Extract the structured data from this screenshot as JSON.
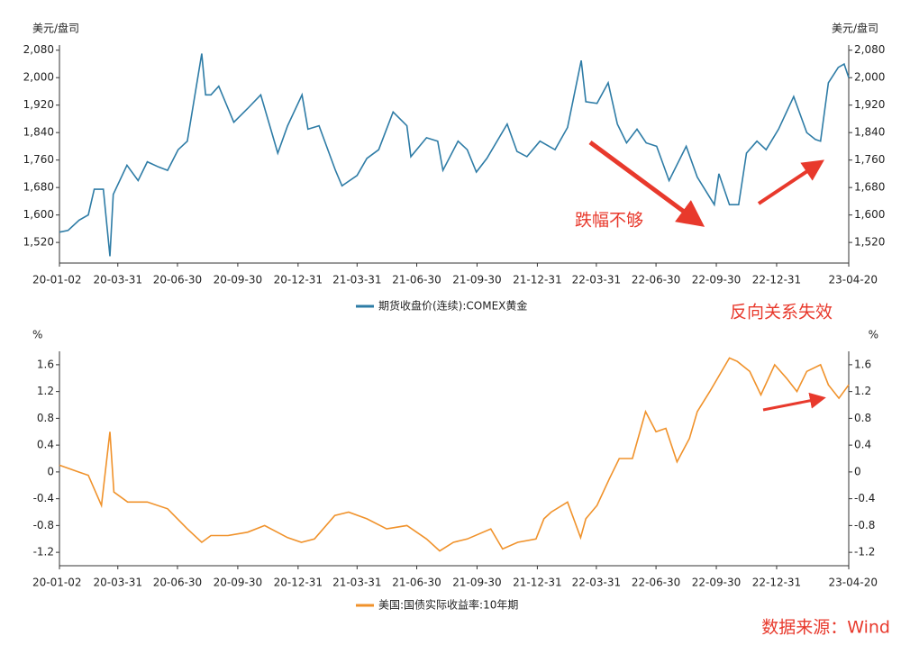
{
  "chart_data": [
    {
      "type": "line",
      "y_label": "美元/盘司",
      "y2_label": "美元/盘司",
      "annotations": [
        "跌幅不够",
        "反向关系失效"
      ],
      "xlim": [
        "20-01-02",
        "23-04-20"
      ],
      "xticks": [
        "20-01-02",
        "20-03-31",
        "20-06-30",
        "20-09-30",
        "20-12-31",
        "21-03-31",
        "21-06-30",
        "21-09-30",
        "21-12-31",
        "22-03-31",
        "22-06-30",
        "22-09-30",
        "22-12-31",
        "23-04-20"
      ],
      "ylim": [
        1460,
        2095
      ],
      "yticks": [
        {
          "value": 1520,
          "label": "1,520"
        },
        {
          "value": 1600,
          "label": "1,600"
        },
        {
          "value": 1680,
          "label": "1,680"
        },
        {
          "value": 1760,
          "label": "1,760"
        },
        {
          "value": 1840,
          "label": "1,840"
        },
        {
          "value": 1920,
          "label": "1,920"
        },
        {
          "value": 2000,
          "label": "2,000"
        },
        {
          "value": 2080,
          "label": "2,080"
        }
      ],
      "x": [
        "20-01-02",
        "20-01-15",
        "20-02-01",
        "20-02-15",
        "20-02-24",
        "20-03-09",
        "20-03-19",
        "20-03-24",
        "20-04-14",
        "20-05-01",
        "20-05-15",
        "20-06-01",
        "20-06-15",
        "20-07-01",
        "20-07-15",
        "20-08-06",
        "20-08-12",
        "20-08-20",
        "20-09-01",
        "20-09-24",
        "20-10-15",
        "20-11-04",
        "20-11-30",
        "20-12-15",
        "21-01-06",
        "21-01-15",
        "21-02-01",
        "21-02-26",
        "21-03-08",
        "21-03-31",
        "21-04-15",
        "21-05-03",
        "21-05-25",
        "21-06-15",
        "21-06-21",
        "21-07-15",
        "21-08-01",
        "21-08-09",
        "21-09-01",
        "21-09-15",
        "21-09-29",
        "21-10-15",
        "21-11-15",
        "21-11-30",
        "21-12-15",
        "22-01-04",
        "22-01-27",
        "22-02-15",
        "22-03-08",
        "22-03-15",
        "22-04-01",
        "22-04-18",
        "22-05-02",
        "22-05-16",
        "22-06-01",
        "22-06-15",
        "22-07-01",
        "22-07-20",
        "22-08-15",
        "22-09-01",
        "22-09-27",
        "22-10-04",
        "22-10-20",
        "22-11-03",
        "22-11-15",
        "22-12-01",
        "22-12-15",
        "23-01-03",
        "23-01-26",
        "23-02-15",
        "23-02-28",
        "23-03-08",
        "23-03-20",
        "23-04-04",
        "23-04-13",
        "23-04-20"
      ],
      "series": [
        {
          "name": "期货收盘价(连续):COMEX黄金",
          "color": "#2e7ca6",
          "values": [
            1550,
            1555,
            1585,
            1600,
            1675,
            1675,
            1480,
            1660,
            1745,
            1700,
            1755,
            1740,
            1730,
            1790,
            1815,
            2070,
            1950,
            1950,
            1975,
            1870,
            1910,
            1950,
            1780,
            1860,
            1950,
            1850,
            1860,
            1730,
            1685,
            1715,
            1765,
            1790,
            1900,
            1860,
            1770,
            1825,
            1815,
            1730,
            1815,
            1790,
            1725,
            1765,
            1865,
            1785,
            1770,
            1815,
            1790,
            1855,
            2050,
            1930,
            1925,
            1985,
            1865,
            1810,
            1850,
            1810,
            1800,
            1700,
            1800,
            1710,
            1630,
            1720,
            1630,
            1630,
            1780,
            1815,
            1790,
            1850,
            1945,
            1840,
            1820,
            1815,
            1985,
            2030,
            2040,
            2000
          ]
        }
      ]
    },
    {
      "type": "line",
      "y_label": "%",
      "y2_label": "%",
      "xlim": [
        "20-01-02",
        "23-04-20"
      ],
      "xticks": [
        "20-01-02",
        "20-03-31",
        "20-06-30",
        "20-09-30",
        "20-12-31",
        "21-03-31",
        "21-06-30",
        "21-09-30",
        "21-12-31",
        "22-03-31",
        "22-06-30",
        "22-09-30",
        "22-12-31",
        "23-04-20"
      ],
      "ylim": [
        -1.4,
        1.8
      ],
      "yticks": [
        -1.2,
        -0.8,
        -0.4,
        0,
        0.4,
        0.8,
        1.2,
        1.6
      ],
      "x": [
        "20-01-02",
        "20-01-31",
        "20-02-15",
        "20-03-06",
        "20-03-19",
        "20-03-25",
        "20-04-15",
        "20-05-15",
        "20-06-15",
        "20-07-15",
        "20-08-06",
        "20-08-20",
        "20-09-15",
        "20-10-15",
        "20-11-10",
        "20-12-15",
        "21-01-05",
        "21-01-25",
        "21-02-25",
        "21-03-18",
        "21-04-15",
        "21-05-15",
        "21-06-15",
        "21-07-15",
        "21-08-04",
        "21-08-25",
        "21-09-15",
        "21-10-21",
        "21-11-08",
        "21-12-01",
        "21-12-29",
        "22-01-10",
        "22-01-21",
        "22-02-15",
        "22-03-07",
        "22-03-15",
        "22-04-01",
        "22-04-20",
        "22-05-05",
        "22-05-25",
        "22-06-14",
        "22-06-30",
        "22-07-15",
        "22-08-01",
        "22-08-20",
        "22-09-01",
        "22-09-20",
        "22-10-20",
        "22-11-01",
        "22-11-20",
        "22-12-07",
        "22-12-28",
        "23-01-15",
        "23-01-31",
        "23-02-15",
        "23-03-08",
        "23-03-20",
        "23-04-05",
        "23-04-20"
      ],
      "series": [
        {
          "name": "美国:国债实际收益率:10年期",
          "color": "#f0922b",
          "values": [
            0.1,
            0.0,
            -0.05,
            -0.5,
            0.6,
            -0.3,
            -0.45,
            -0.45,
            -0.55,
            -0.85,
            -1.05,
            -0.95,
            -0.95,
            -0.9,
            -0.8,
            -0.98,
            -1.05,
            -1.0,
            -0.65,
            -0.6,
            -0.7,
            -0.85,
            -0.8,
            -1.0,
            -1.18,
            -1.05,
            -1.0,
            -0.85,
            -1.15,
            -1.05,
            -1.0,
            -0.7,
            -0.6,
            -0.45,
            -0.98,
            -0.7,
            -0.5,
            -0.1,
            0.2,
            0.2,
            0.9,
            0.6,
            0.65,
            0.15,
            0.5,
            0.9,
            1.2,
            1.7,
            1.65,
            1.5,
            1.15,
            1.6,
            1.4,
            1.2,
            1.5,
            1.6,
            1.3,
            1.1,
            1.3
          ]
        }
      ]
    }
  ],
  "source": "数据来源：Wind"
}
